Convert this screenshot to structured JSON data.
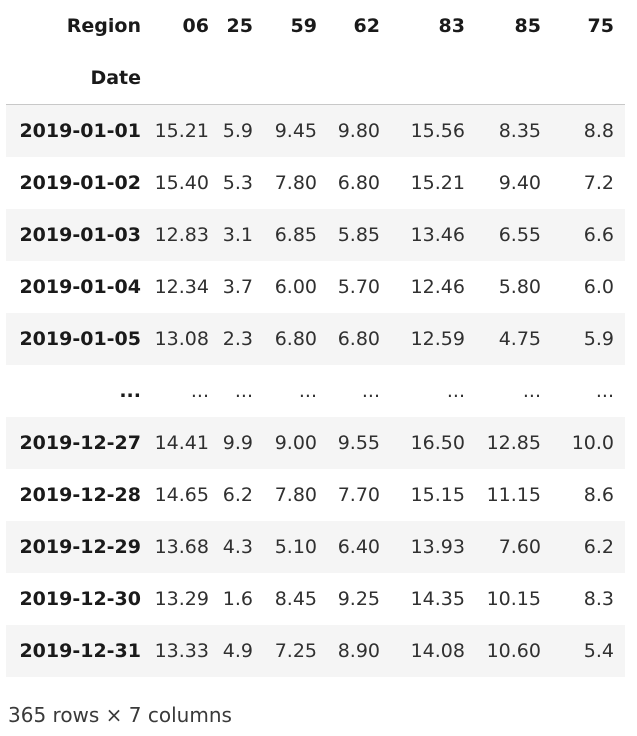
{
  "dataframe": {
    "columns_axis_name": "Region",
    "index_name": "Date",
    "columns": [
      "06",
      "25",
      "59",
      "62",
      "83",
      "85",
      "75"
    ],
    "rows": [
      {
        "index": "2019-01-01",
        "values": [
          "15.21",
          "5.9",
          "9.45",
          "9.80",
          "15.56",
          "8.35",
          "8.8"
        ]
      },
      {
        "index": "2019-01-02",
        "values": [
          "15.40",
          "5.3",
          "7.80",
          "6.80",
          "15.21",
          "9.40",
          "7.2"
        ]
      },
      {
        "index": "2019-01-03",
        "values": [
          "12.83",
          "3.1",
          "6.85",
          "5.85",
          "13.46",
          "6.55",
          "6.6"
        ]
      },
      {
        "index": "2019-01-04",
        "values": [
          "12.34",
          "3.7",
          "6.00",
          "5.70",
          "12.46",
          "5.80",
          "6.0"
        ]
      },
      {
        "index": "2019-01-05",
        "values": [
          "13.08",
          "2.3",
          "6.80",
          "6.80",
          "12.59",
          "4.75",
          "5.9"
        ]
      },
      {
        "index": "...",
        "values": [
          "...",
          "...",
          "...",
          "...",
          "...",
          "...",
          "..."
        ]
      },
      {
        "index": "2019-12-27",
        "values": [
          "14.41",
          "9.9",
          "9.00",
          "9.55",
          "16.50",
          "12.85",
          "10.0"
        ]
      },
      {
        "index": "2019-12-28",
        "values": [
          "14.65",
          "6.2",
          "7.80",
          "7.70",
          "15.15",
          "11.15",
          "8.6"
        ]
      },
      {
        "index": "2019-12-29",
        "values": [
          "13.68",
          "4.3",
          "5.10",
          "6.40",
          "13.93",
          "7.60",
          "6.2"
        ]
      },
      {
        "index": "2019-12-30",
        "values": [
          "13.29",
          "1.6",
          "8.45",
          "9.25",
          "14.35",
          "10.15",
          "8.3"
        ]
      },
      {
        "index": "2019-12-31",
        "values": [
          "13.33",
          "4.9",
          "7.25",
          "8.90",
          "14.08",
          "10.60",
          "5.4"
        ]
      }
    ],
    "shape_caption": "365 rows × 7 columns"
  }
}
